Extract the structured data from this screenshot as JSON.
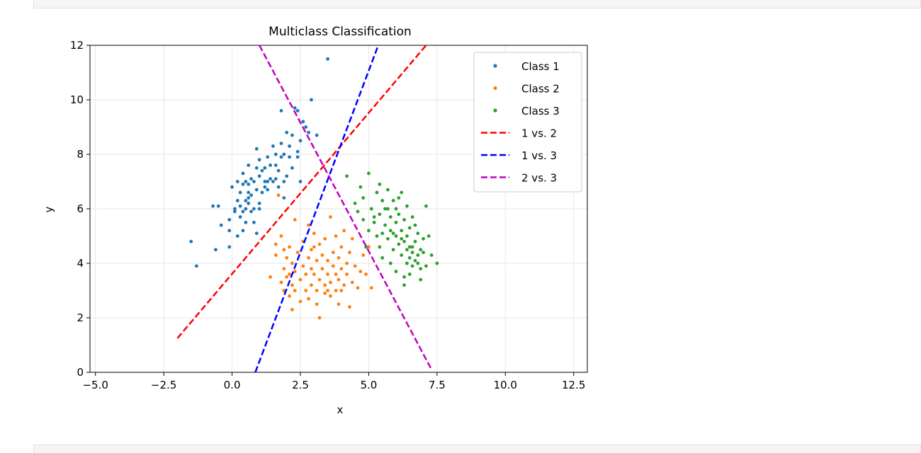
{
  "notebook": {
    "prev_cell_code": "",
    "next_cell_prompt": "",
    "next_cell_code": ""
  },
  "chart_data": {
    "type": "scatter",
    "title": "Multiclass Classification",
    "xlabel": "x",
    "ylabel": "y",
    "xlim": [
      -5.2,
      13.0
    ],
    "ylim": [
      0,
      12
    ],
    "xticks": [
      -5.0,
      -2.5,
      0.0,
      2.5,
      5.0,
      7.5,
      10.0,
      12.5
    ],
    "xtick_labels": [
      "−5.0",
      "−2.5",
      "0.0",
      "2.5",
      "5.0",
      "7.5",
      "10.0",
      "12.5"
    ],
    "yticks": [
      0,
      2,
      4,
      6,
      8,
      10,
      12
    ],
    "ytick_labels": [
      "0",
      "2",
      "4",
      "6",
      "8",
      "10",
      "12"
    ],
    "grid": true,
    "legend_position": "upper right",
    "series": [
      {
        "name": "Class 1",
        "kind": "points",
        "color": "#1f77b4",
        "points": [
          [
            -1.5,
            4.8
          ],
          [
            -1.3,
            3.9
          ],
          [
            -0.7,
            6.1
          ],
          [
            -0.5,
            6.1
          ],
          [
            -0.6,
            4.5
          ],
          [
            -0.4,
            5.4
          ],
          [
            -0.1,
            4.6
          ],
          [
            -0.1,
            5.2
          ],
          [
            -0.1,
            5.6
          ],
          [
            0.0,
            6.8
          ],
          [
            0.1,
            5.9
          ],
          [
            0.1,
            6.0
          ],
          [
            0.2,
            5.0
          ],
          [
            0.2,
            6.3
          ],
          [
            0.2,
            7.0
          ],
          [
            0.3,
            5.7
          ],
          [
            0.3,
            6.1
          ],
          [
            0.3,
            6.6
          ],
          [
            0.4,
            5.2
          ],
          [
            0.4,
            5.9
          ],
          [
            0.4,
            6.9
          ],
          [
            0.4,
            7.3
          ],
          [
            0.5,
            5.5
          ],
          [
            0.5,
            6.0
          ],
          [
            0.5,
            6.3
          ],
          [
            0.5,
            7.0
          ],
          [
            0.6,
            6.2
          ],
          [
            0.6,
            6.6
          ],
          [
            0.6,
            6.9
          ],
          [
            0.6,
            7.6
          ],
          [
            0.7,
            5.9
          ],
          [
            0.7,
            6.5
          ],
          [
            0.7,
            7.1
          ],
          [
            0.8,
            5.5
          ],
          [
            0.8,
            6.0
          ],
          [
            0.8,
            7.0
          ],
          [
            0.9,
            5.1
          ],
          [
            0.9,
            6.7
          ],
          [
            0.9,
            8.2
          ],
          [
            1.0,
            6.0
          ],
          [
            1.0,
            7.2
          ],
          [
            1.0,
            7.8
          ],
          [
            1.1,
            6.6
          ],
          [
            1.1,
            7.4
          ],
          [
            1.2,
            7.0
          ],
          [
            1.2,
            7.5
          ],
          [
            1.3,
            6.7
          ],
          [
            1.3,
            7.9
          ],
          [
            1.4,
            7.1
          ],
          [
            1.4,
            7.6
          ],
          [
            1.5,
            8.3
          ],
          [
            1.5,
            7.0
          ],
          [
            1.6,
            7.6
          ],
          [
            1.6,
            8.0
          ],
          [
            1.7,
            6.8
          ],
          [
            1.7,
            7.4
          ],
          [
            1.8,
            7.9
          ],
          [
            1.8,
            8.4
          ],
          [
            1.8,
            9.6
          ],
          [
            1.9,
            6.4
          ],
          [
            1.9,
            7.0
          ],
          [
            1.9,
            8.0
          ],
          [
            2.0,
            7.2
          ],
          [
            2.0,
            8.8
          ],
          [
            2.1,
            7.9
          ],
          [
            2.1,
            8.3
          ],
          [
            2.2,
            8.7
          ],
          [
            2.2,
            7.5
          ],
          [
            2.3,
            9.7
          ],
          [
            2.4,
            7.9
          ],
          [
            2.4,
            8.1
          ],
          [
            2.4,
            9.6
          ],
          [
            2.5,
            8.5
          ],
          [
            2.5,
            7.0
          ],
          [
            2.6,
            9.2
          ],
          [
            2.7,
            9.0
          ],
          [
            2.8,
            8.8
          ],
          [
            2.9,
            10.0
          ],
          [
            3.1,
            8.7
          ],
          [
            3.5,
            11.5
          ],
          [
            1.3,
            7.0
          ],
          [
            0.6,
            6.4
          ],
          [
            1.2,
            6.8
          ],
          [
            0.9,
            7.5
          ],
          [
            1.6,
            7.1
          ],
          [
            1.0,
            6.2
          ]
        ]
      },
      {
        "name": "Class 2",
        "kind": "points",
        "color": "#ff7f0e",
        "points": [
          [
            1.6,
            4.7
          ],
          [
            1.7,
            6.5
          ],
          [
            1.8,
            3.3
          ],
          [
            1.8,
            5.0
          ],
          [
            1.9,
            3.0
          ],
          [
            1.9,
            3.8
          ],
          [
            1.9,
            4.5
          ],
          [
            2.0,
            3.5
          ],
          [
            2.0,
            4.2
          ],
          [
            2.1,
            2.8
          ],
          [
            2.1,
            3.6
          ],
          [
            2.1,
            4.6
          ],
          [
            2.2,
            2.3
          ],
          [
            2.2,
            3.2
          ],
          [
            2.2,
            4.0
          ],
          [
            2.3,
            3.0
          ],
          [
            2.3,
            3.7
          ],
          [
            2.4,
            4.4
          ],
          [
            2.5,
            2.6
          ],
          [
            2.5,
            3.4
          ],
          [
            2.6,
            3.9
          ],
          [
            2.6,
            4.8
          ],
          [
            2.7,
            3.0
          ],
          [
            2.7,
            3.6
          ],
          [
            2.8,
            4.2
          ],
          [
            2.8,
            5.4
          ],
          [
            2.8,
            2.7
          ],
          [
            2.9,
            3.2
          ],
          [
            2.9,
            3.8
          ],
          [
            2.9,
            4.5
          ],
          [
            3.0,
            3.6
          ],
          [
            3.0,
            5.1
          ],
          [
            3.1,
            2.5
          ],
          [
            3.1,
            3.0
          ],
          [
            3.1,
            4.1
          ],
          [
            3.2,
            2.0
          ],
          [
            3.2,
            3.4
          ],
          [
            3.2,
            4.7
          ],
          [
            3.3,
            3.8
          ],
          [
            3.3,
            4.3
          ],
          [
            3.4,
            2.9
          ],
          [
            3.4,
            3.2
          ],
          [
            3.4,
            4.9
          ],
          [
            3.5,
            3.6
          ],
          [
            3.5,
            4.1
          ],
          [
            3.6,
            2.8
          ],
          [
            3.6,
            3.3
          ],
          [
            3.6,
            5.7
          ],
          [
            3.7,
            3.9
          ],
          [
            3.7,
            4.4
          ],
          [
            3.8,
            3.0
          ],
          [
            3.8,
            3.6
          ],
          [
            3.8,
            5.0
          ],
          [
            3.9,
            2.5
          ],
          [
            3.9,
            3.4
          ],
          [
            3.9,
            4.2
          ],
          [
            4.0,
            3.8
          ],
          [
            4.0,
            4.6
          ],
          [
            4.1,
            3.2
          ],
          [
            4.1,
            5.2
          ],
          [
            4.2,
            3.6
          ],
          [
            4.2,
            4.0
          ],
          [
            4.3,
            2.4
          ],
          [
            4.3,
            4.4
          ],
          [
            4.4,
            3.3
          ],
          [
            4.4,
            4.9
          ],
          [
            4.5,
            3.9
          ],
          [
            4.6,
            3.1
          ],
          [
            4.7,
            3.7
          ],
          [
            4.8,
            4.3
          ],
          [
            4.9,
            3.6
          ],
          [
            5.0,
            4.6
          ],
          [
            5.1,
            3.1
          ],
          [
            1.4,
            3.5
          ],
          [
            1.6,
            4.3
          ],
          [
            2.3,
            5.6
          ],
          [
            3.0,
            4.6
          ],
          [
            3.5,
            3.0
          ],
          [
            4.0,
            3.0
          ]
        ]
      },
      {
        "name": "Class 3",
        "kind": "points",
        "color": "#2ca02c",
        "points": [
          [
            4.2,
            7.2
          ],
          [
            4.5,
            6.2
          ],
          [
            4.6,
            5.9
          ],
          [
            4.7,
            6.8
          ],
          [
            4.8,
            5.6
          ],
          [
            4.8,
            6.4
          ],
          [
            4.9,
            4.6
          ],
          [
            5.0,
            7.3
          ],
          [
            5.0,
            5.2
          ],
          [
            5.1,
            6.0
          ],
          [
            5.2,
            5.7
          ],
          [
            5.3,
            6.6
          ],
          [
            5.3,
            5.0
          ],
          [
            5.4,
            4.6
          ],
          [
            5.4,
            5.8
          ],
          [
            5.5,
            6.3
          ],
          [
            5.5,
            4.2
          ],
          [
            5.6,
            5.4
          ],
          [
            5.6,
            6.0
          ],
          [
            5.7,
            4.9
          ],
          [
            5.7,
            6.7
          ],
          [
            5.8,
            5.2
          ],
          [
            5.8,
            5.7
          ],
          [
            5.9,
            4.5
          ],
          [
            5.9,
            6.3
          ],
          [
            6.0,
            5.0
          ],
          [
            6.0,
            5.5
          ],
          [
            6.0,
            6.0
          ],
          [
            6.1,
            4.7
          ],
          [
            6.1,
            5.8
          ],
          [
            6.2,
            4.3
          ],
          [
            6.2,
            5.2
          ],
          [
            6.2,
            6.6
          ],
          [
            6.3,
            4.8
          ],
          [
            6.3,
            5.6
          ],
          [
            6.4,
            4.5
          ],
          [
            6.4,
            5.0
          ],
          [
            6.4,
            6.1
          ],
          [
            6.5,
            4.2
          ],
          [
            6.5,
            4.6
          ],
          [
            6.5,
            5.3
          ],
          [
            6.6,
            3.9
          ],
          [
            6.6,
            4.4
          ],
          [
            6.6,
            5.7
          ],
          [
            6.7,
            4.1
          ],
          [
            6.7,
            4.8
          ],
          [
            6.8,
            4.3
          ],
          [
            6.8,
            5.1
          ],
          [
            6.9,
            4.5
          ],
          [
            6.9,
            3.8
          ],
          [
            7.0,
            4.4
          ],
          [
            7.0,
            4.9
          ],
          [
            7.1,
            3.9
          ],
          [
            7.1,
            6.1
          ],
          [
            7.2,
            5.0
          ],
          [
            7.3,
            4.3
          ],
          [
            7.5,
            4.0
          ],
          [
            6.3,
            3.5
          ],
          [
            6.0,
            3.7
          ],
          [
            5.8,
            4.0
          ],
          [
            6.1,
            6.4
          ],
          [
            5.5,
            5.1
          ],
          [
            6.7,
            5.4
          ],
          [
            6.9,
            3.4
          ],
          [
            6.3,
            3.2
          ],
          [
            5.9,
            5.1
          ],
          [
            6.6,
            4.6
          ],
          [
            6.4,
            4.0
          ],
          [
            5.7,
            6.0
          ],
          [
            5.2,
            5.5
          ],
          [
            6.2,
            4.9
          ],
          [
            6.5,
            3.6
          ],
          [
            5.4,
            6.9
          ],
          [
            6.8,
            4.0
          ]
        ]
      },
      {
        "name": "1 vs. 2",
        "kind": "dashed-line",
        "color": "#ff0000",
        "x": [
          -2.0,
          7.1
        ],
        "y": [
          1.25,
          12.0
        ]
      },
      {
        "name": "1 vs. 3",
        "kind": "dashed-line",
        "color": "#0000ff",
        "x": [
          0.85,
          5.35
        ],
        "y": [
          0.0,
          12.0
        ]
      },
      {
        "name": "2 vs. 3",
        "kind": "dashed-line",
        "color": "#bf00bf",
        "x": [
          1.0,
          7.3
        ],
        "y": [
          12.0,
          0.1
        ]
      }
    ]
  }
}
